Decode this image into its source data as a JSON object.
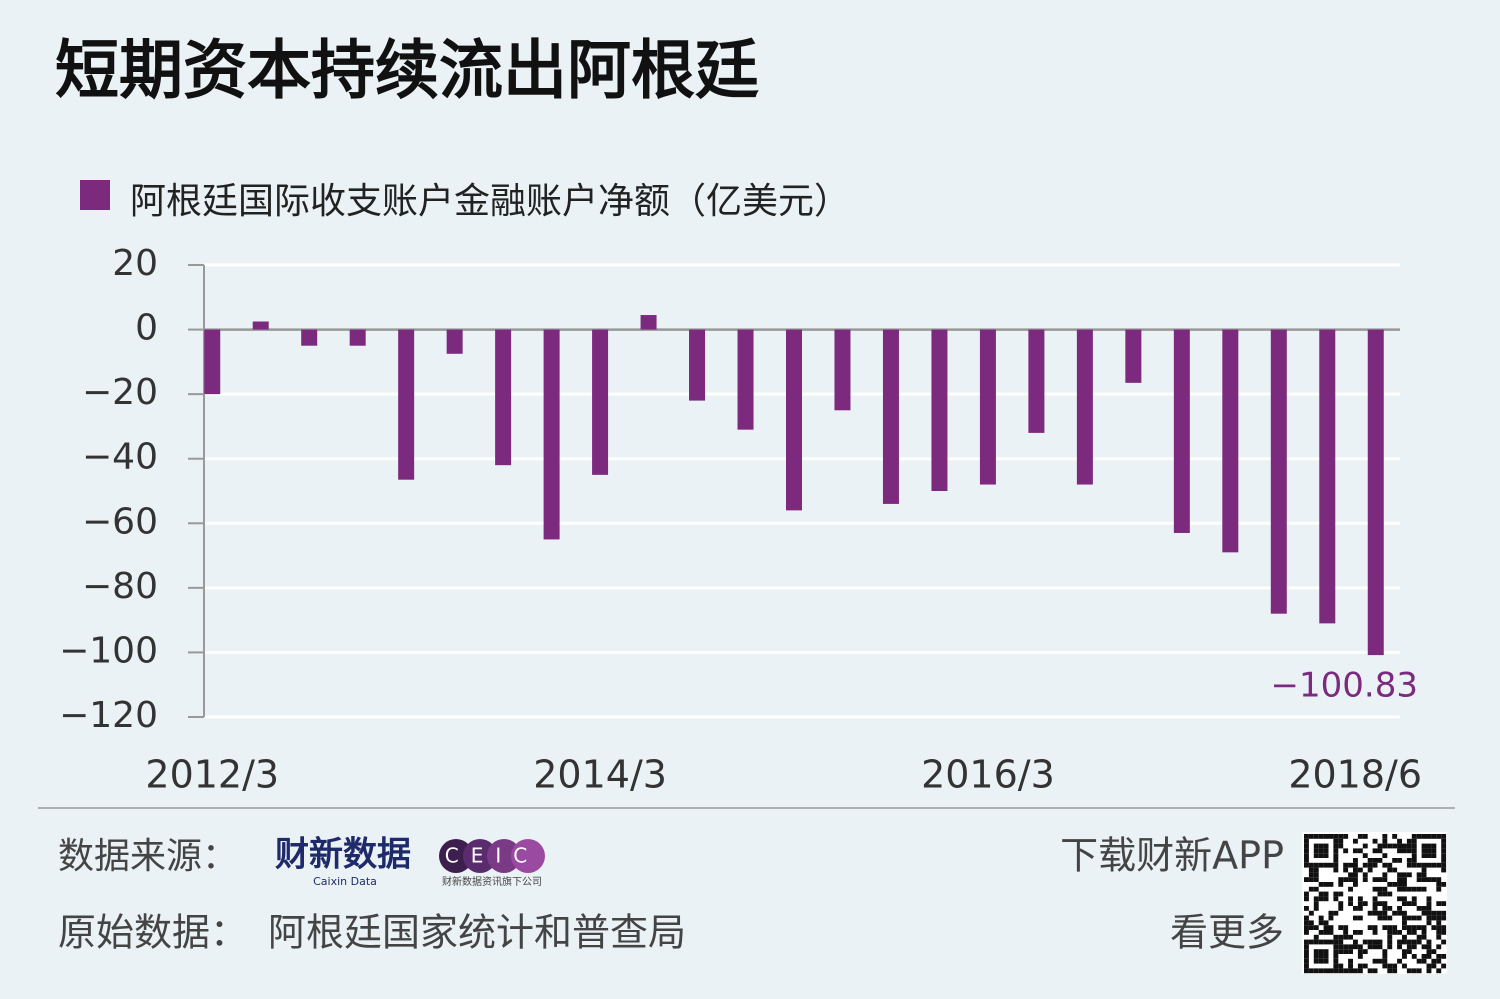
{
  "chart_data": {
    "type": "bar",
    "title": "短期资本持续流出阿根廷",
    "categories": [
      "2012/3",
      null,
      null,
      null,
      null,
      null,
      null,
      null,
      "2014/3",
      null,
      null,
      null,
      null,
      null,
      null,
      null,
      "2016/3",
      null,
      null,
      null,
      null,
      null,
      null,
      null,
      "2018/6"
    ],
    "series": [
      {
        "name": "阿根廷国际收支账户金融账户净额（亿美元）",
        "color": "#7b2a7e",
        "values": [
          -20,
          2.5,
          -5,
          -5,
          -46.5,
          -7.5,
          -42,
          -65,
          -45,
          4.5,
          -22,
          -31,
          -56,
          -25,
          -54,
          -50,
          -48,
          -32,
          -48,
          -16.5,
          -63,
          -69,
          -88,
          -91,
          -100.83
        ],
        "value_labels": [
          null,
          null,
          null,
          null,
          null,
          null,
          null,
          null,
          null,
          null,
          null,
          null,
          null,
          null,
          null,
          null,
          null,
          null,
          null,
          null,
          null,
          null,
          null,
          null,
          "−100.83"
        ]
      }
    ],
    "ylim": [
      -120,
      20
    ],
    "yticks": [
      20,
      0,
      {
        "value": -20,
        "label": "−20"
      },
      {
        "value": -40,
        "label": "−40"
      },
      {
        "value": -60,
        "label": "−60"
      },
      {
        "value": -80,
        "label": "−80"
      },
      {
        "value": -100,
        "label": "−100"
      },
      {
        "value": -120,
        "label": "−120"
      }
    ],
    "grid": true,
    "footer": {
      "source_label": "数据来源：",
      "logo1": "财新数据",
      "logo1_sub": "Caixin Data",
      "logo2": "CEIC",
      "logo2_sub": "财新数据资讯旗下公司",
      "origin_label": "原始数据：",
      "origin": "阿根廷国家统计和普查局",
      "app1": "下载财新APP",
      "app2": "看更多"
    }
  }
}
